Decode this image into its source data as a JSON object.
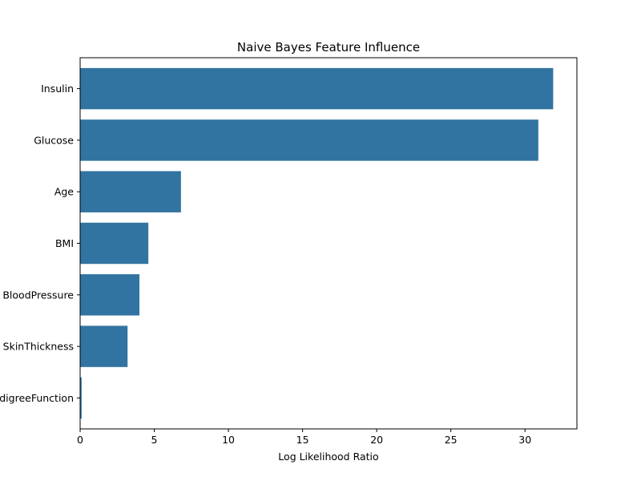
{
  "chart_data": {
    "type": "bar",
    "orientation": "horizontal",
    "title": "Naive Bayes Feature Influence",
    "xlabel": "Log Likelihood Ratio",
    "ylabel": "",
    "categories": [
      "Insulin",
      "Glucose",
      "Age",
      "BMI",
      "BloodPressure",
      "SkinThickness",
      "DiabetesPedigreeFunction"
    ],
    "values": [
      31.9,
      30.9,
      6.8,
      4.6,
      4.0,
      3.2,
      0.1
    ],
    "xlim": [
      0,
      33.5
    ],
    "xticks": [
      0,
      5,
      10,
      15,
      20,
      25,
      30
    ],
    "grid": false,
    "colors": {
      "bar": "#3274a1",
      "axis": "#000000"
    }
  }
}
